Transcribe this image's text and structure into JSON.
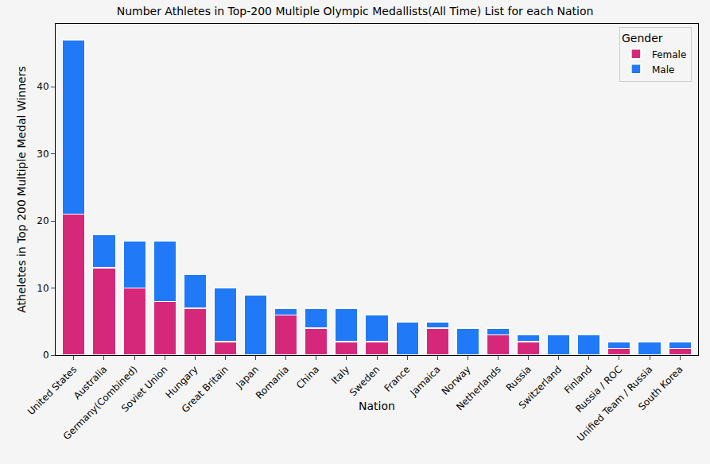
{
  "chart_data": {
    "type": "bar",
    "title": "Number Athletes in Top-200 Multiple Olympic Medallists(All Time) List for each Nation",
    "x_label": "Nation",
    "y_label": "Atheletes in Top 200 Multiple Medal Winners",
    "categories": [
      "United States",
      "Australia",
      "Germany(Combined)",
      "Soviet Union",
      "Hungary",
      "Great Britain",
      "Japan",
      "Romania",
      "China",
      "Italy",
      "Sweden",
      "France",
      "Jamaica",
      "Norway",
      "Netherlands",
      "Russia",
      "Switzerland",
      "Finland",
      "Russia / ROC",
      "Unified Team / Russia",
      "South Korea"
    ],
    "series": [
      {
        "name": "Female",
        "color": "#d6287a",
        "values": [
          21,
          13,
          10,
          8,
          7,
          2,
          0,
          6,
          4,
          2,
          2,
          0,
          4,
          0,
          3,
          2,
          0,
          0,
          1,
          0,
          1
        ]
      },
      {
        "name": "Male",
        "color": "#2079f6",
        "values": [
          26,
          5,
          7,
          9,
          5,
          8,
          9,
          1,
          3,
          5,
          4,
          5,
          1,
          4,
          1,
          1,
          3,
          3,
          1,
          2,
          1
        ]
      }
    ],
    "stacked": true,
    "legend": "top right",
    "legend_title": "Gender",
    "ylim": [
      0,
      49.35
    ],
    "yticks": [
      0,
      10,
      20,
      30,
      40
    ],
    "grid": false
  }
}
